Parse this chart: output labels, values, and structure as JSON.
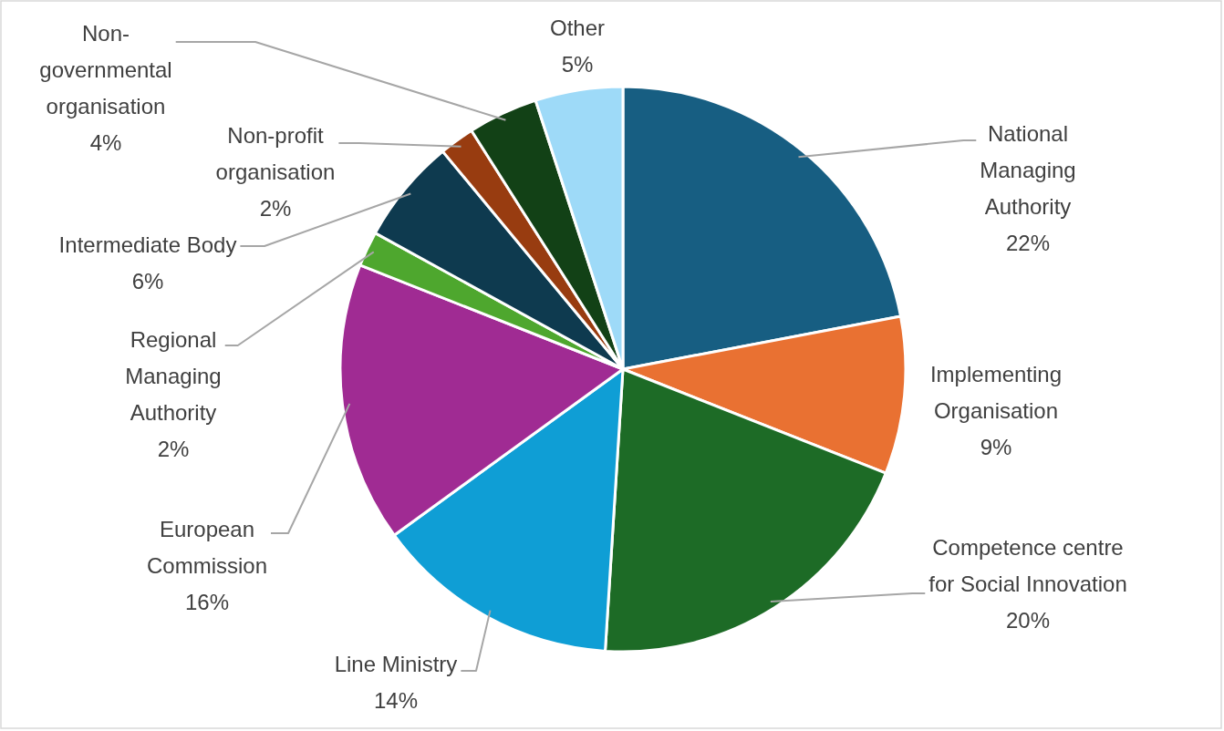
{
  "chart_data": {
    "type": "pie",
    "categories": [
      "National Managing Authority",
      "Implementing Organisation",
      "Competence centre for Social Innovation",
      "Line Ministry",
      "European Commission",
      "Regional Managing Authority",
      "Intermediate Body",
      "Non-profit organisation",
      "Non-governmental organisation",
      "Other"
    ],
    "values": [
      22,
      9,
      20,
      14,
      16,
      2,
      6,
      2,
      4,
      5
    ],
    "colors": [
      "#175e82",
      "#e97132",
      "#1d6b26",
      "#0f9ed5",
      "#a02b93",
      "#4ea72e",
      "#0e3a4f",
      "#983c10",
      "#124116",
      "#9edaf8"
    ],
    "value_labels": [
      "22%",
      "9%",
      "20%",
      "14%",
      "16%",
      "2%",
      "6%",
      "2%",
      "4%",
      "5%"
    ]
  }
}
